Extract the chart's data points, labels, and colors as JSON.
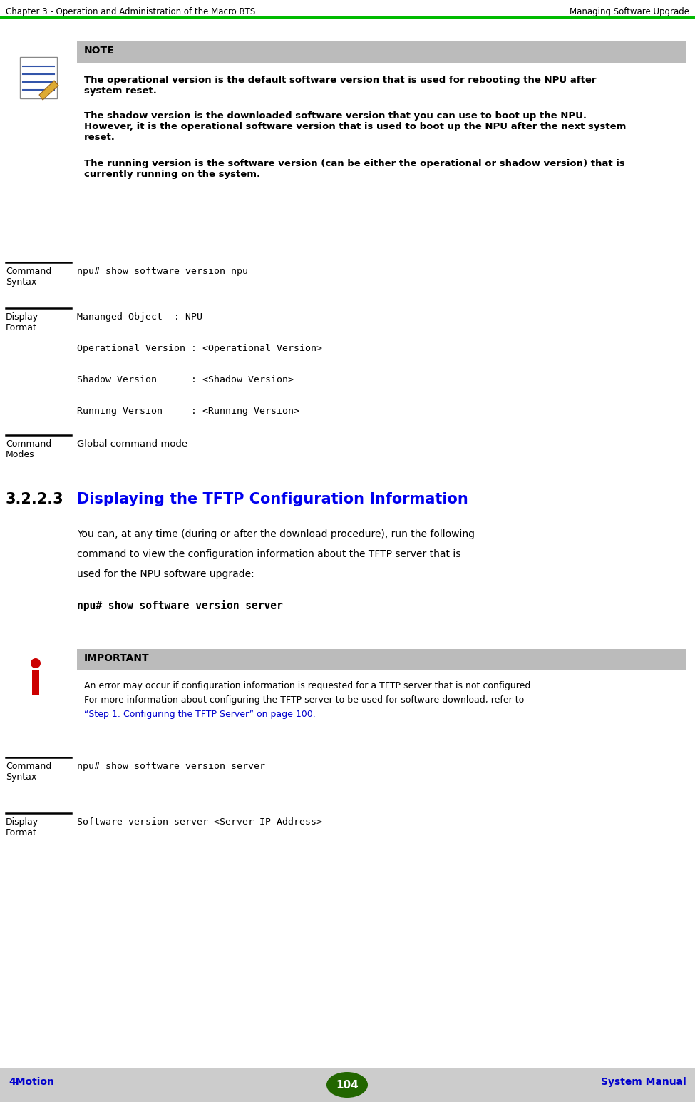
{
  "header_left": "Chapter 3 - Operation and Administration of the Macro BTS",
  "header_right": "Managing Software Upgrade",
  "header_line_color": "#00bb00",
  "bg_color": "#ffffff",
  "footer_bg": "#cccccc",
  "footer_text": "104",
  "footer_left": "4Motion",
  "footer_right": "System Manual",
  "footer_text_color": "#0000cc",
  "footer_ellipse_color": "#226600",
  "note_header_bg": "#bbbbbb",
  "note_header_text": "NOTE",
  "note_text_1": "The operational version is the default software version that is used for rebooting the NPU after\nsystem reset.",
  "note_text_2": "The shadow version is the downloaded software version that you can use to boot up the NPU.\nHowever, it is the operational software version that is used to boot up the NPU after the next system\nreset.",
  "note_text_3": "The running version is the software version (can be either the operational or shadow version) that is\ncurrently running on the system.",
  "cmd_syntax_label": "Command\nSyntax",
  "cmd_syntax_1": "npu# show software version npu",
  "display_format_label": "Display\nFormat",
  "display_format_lines": [
    "Mananged Object  : NPU",
    "",
    "Operational Version : <Operational Version>",
    "",
    "Shadow Version      : <Shadow Version>",
    "",
    "Running Version     : <Running Version>"
  ],
  "cmd_modes_label": "Command\nModes",
  "cmd_modes_text": "Global command mode",
  "section_number": "3.2.2.3",
  "section_title": "Displaying the TFTP Configuration Information",
  "section_title_color": "#0000ee",
  "section_body_line1": "You can, at any time (during or after the download procedure), run the following",
  "section_body_line2": "command to view the configuration information about the TFTP server that is",
  "section_body_line3": "used for the NPU software upgrade:",
  "section_cmd": "npu# show software version server",
  "important_header_bg": "#bbbbbb",
  "important_header_text": "IMPORTANT",
  "important_text_1": "An error may occur if configuration information is requested for a TFTP server that is not configured.",
  "important_text_2": "For more information about configuring the TFTP server to be used for software download, refer to",
  "important_link": "“Step 1: Configuring the TFTP Server” on page 100.",
  "important_link_color": "#0000cc",
  "cmd_syntax_label2": "Command\nSyntax",
  "cmd_syntax_2": "npu# show software version server",
  "display_format_label2": "Display\nFormat",
  "display_format_2": "Software version server <Server IP Address>"
}
